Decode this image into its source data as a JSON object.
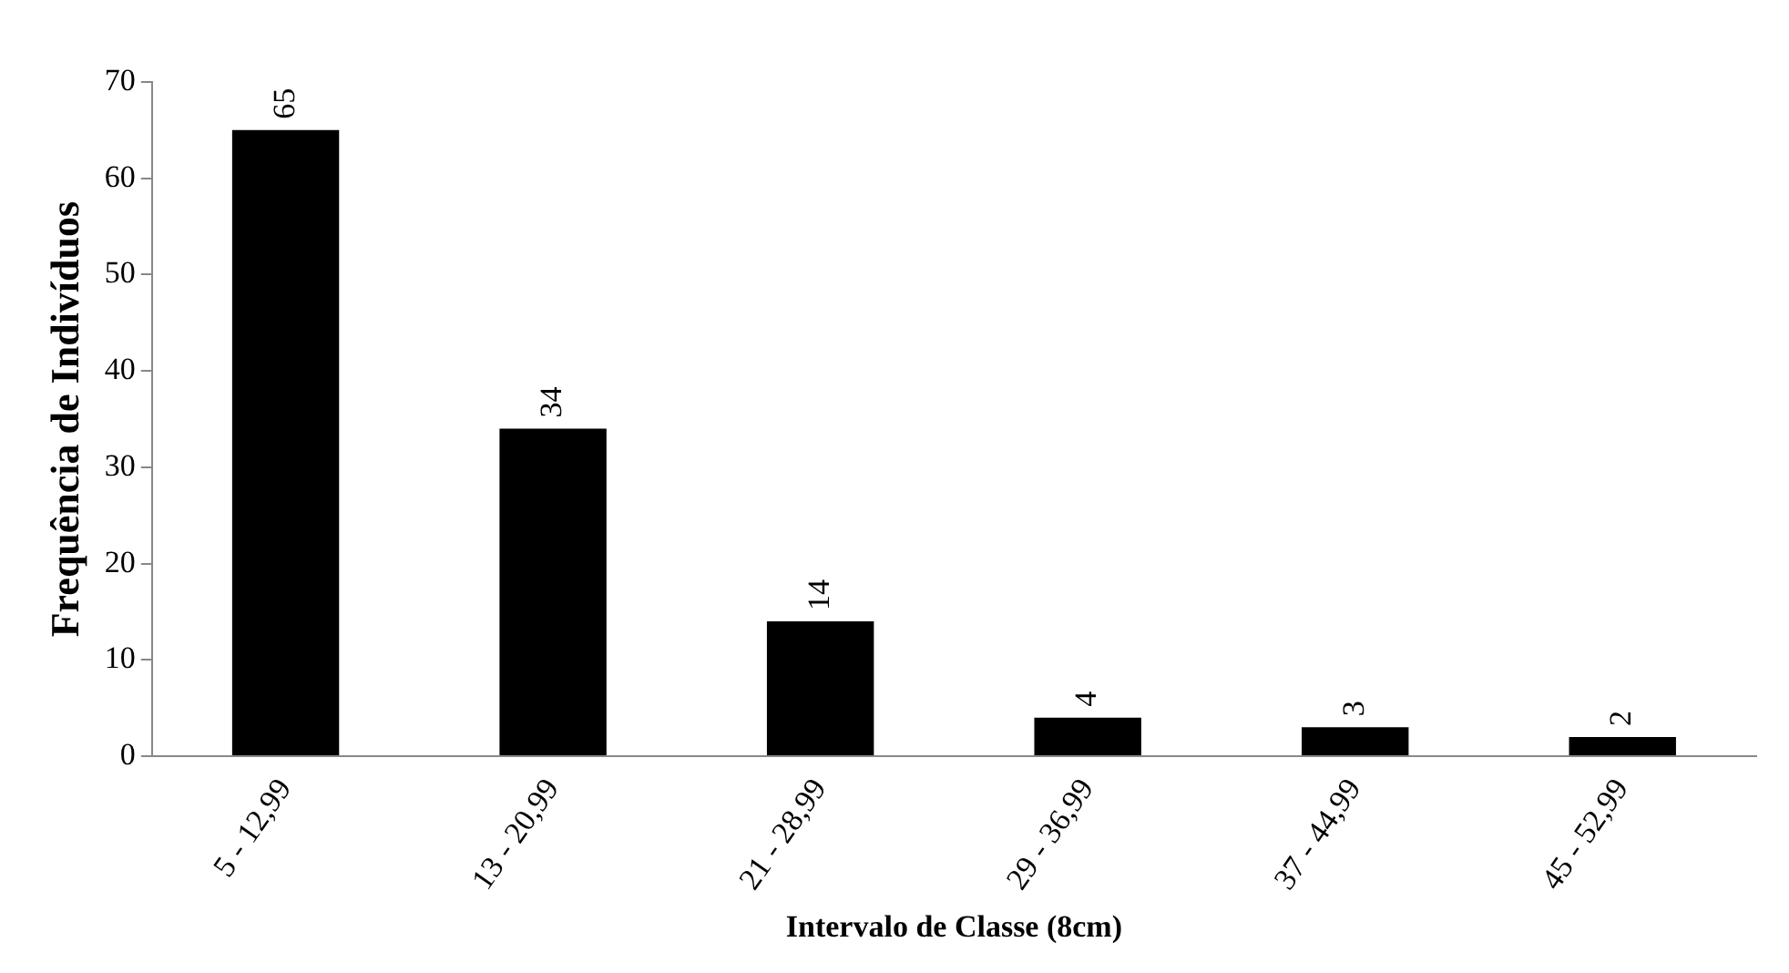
{
  "chart_data": {
    "type": "bar",
    "xlabel": "Intervalo de Classe (8cm)",
    "ylabel": "Frequência de Indivíduos",
    "categories": [
      "5 - 12,99",
      "13 - 20,99",
      "21 - 28,99",
      "29 - 36,99",
      "37 - 44,99",
      "45 - 52,99"
    ],
    "values": [
      65,
      34,
      14,
      4,
      3,
      2
    ],
    "color": "#000000",
    "ylim": [
      0,
      70
    ],
    "yticks": [
      0,
      10,
      20,
      30,
      40,
      50,
      60,
      70
    ],
    "grid": false,
    "legend": false,
    "data_labels": true
  }
}
